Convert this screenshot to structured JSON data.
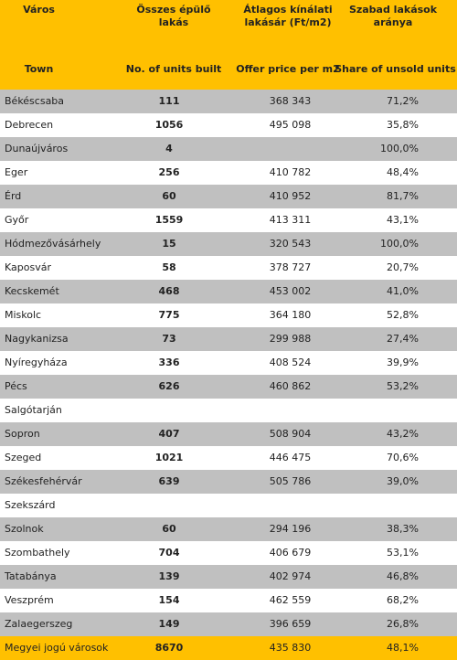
{
  "header": {
    "hu": [
      "Város",
      "Összes épülő lakás",
      "Átlagos kínálati lakásár (Ft/m2)",
      "Szabad lakások aránya"
    ],
    "en": [
      "Town",
      "No. of units built",
      "Offer price per m2",
      "Share of unsold units"
    ]
  },
  "table": {
    "rows": [
      [
        "Békéscsaba",
        "111",
        "368 343",
        "71,2%"
      ],
      [
        "Debrecen",
        "1056",
        "495 098",
        "35,8%"
      ],
      [
        "Dunaújváros",
        "4",
        null,
        "100,0%"
      ],
      [
        "Eger",
        "256",
        "410 782",
        "48,4%"
      ],
      [
        "Érd",
        "60",
        "410 952",
        "81,7%"
      ],
      [
        "Győr",
        "1559",
        "413 311",
        "43,1%"
      ],
      [
        "Hódmezővásárhely",
        "15",
        "320 543",
        "100,0%"
      ],
      [
        "Kaposvár",
        "58",
        "378 727",
        "20,7%"
      ],
      [
        "Kecskemét",
        "468",
        "453 002",
        "41,0%"
      ],
      [
        "Miskolc",
        "775",
        "364 180",
        "52,8%"
      ],
      [
        "Nagykanizsa",
        "73",
        "299 988",
        "27,4%"
      ],
      [
        "Nyíregyháza",
        "336",
        "408 524",
        "39,9%"
      ],
      [
        "Pécs",
        "626",
        "460 862",
        "53,2%"
      ],
      [
        "Salgótarján",
        null,
        null,
        null
      ],
      [
        "Sopron",
        "407",
        "508 904",
        "43,2%"
      ],
      [
        "Szeged",
        "1021",
        "446 475",
        "70,6%"
      ],
      [
        "Székesfehérvár",
        "639",
        "505 786",
        "39,0%"
      ],
      [
        "Szekszárd",
        null,
        null,
        null
      ],
      [
        "Szolnok",
        "60",
        "294 196",
        "38,3%"
      ],
      [
        "Szombathely",
        "704",
        "406 679",
        "53,1%"
      ],
      [
        "Tatabánya",
        "139",
        "402 974",
        "46,8%"
      ],
      [
        "Veszprém",
        "154",
        "462 559",
        "68,2%"
      ],
      [
        "Zalaegerszeg",
        "149",
        "396 659",
        "26,8%"
      ],
      [
        "Megyei jogú városok",
        "8670",
        "435 830",
        "48,1%"
      ]
    ]
  }
}
